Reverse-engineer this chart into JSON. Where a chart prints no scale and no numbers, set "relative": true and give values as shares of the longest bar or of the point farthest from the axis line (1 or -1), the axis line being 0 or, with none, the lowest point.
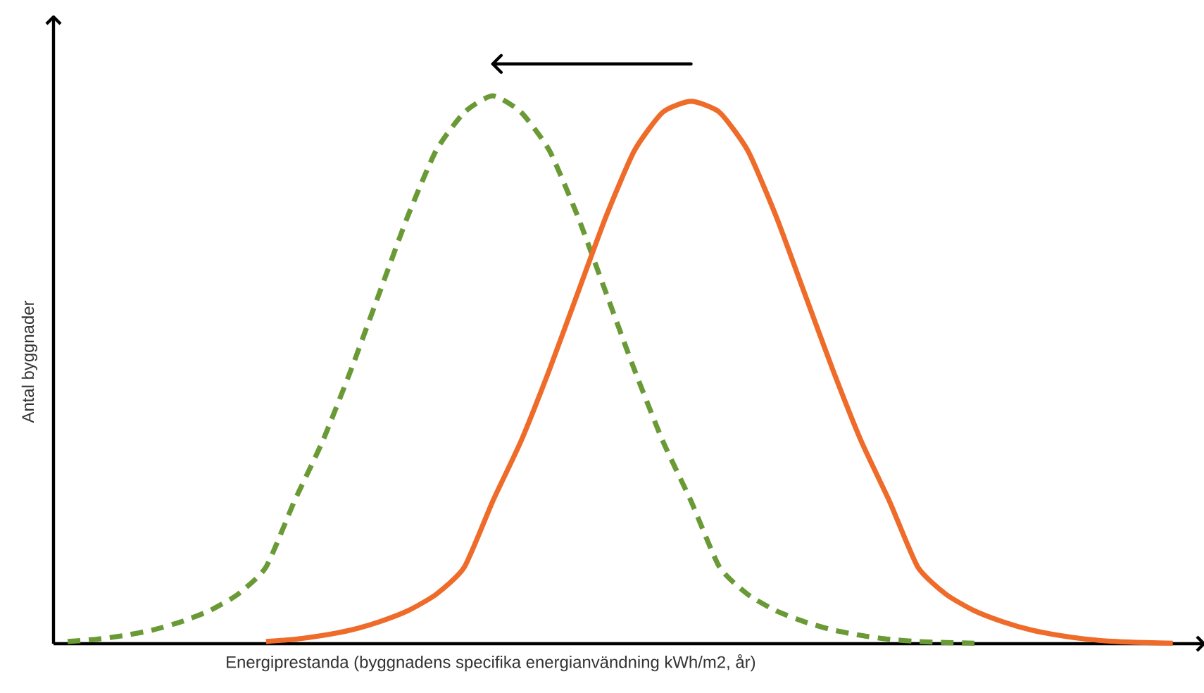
{
  "chart_data": {
    "type": "line",
    "relative": true,
    "xlabel": "Energiprestanda (byggnadens specifika energianvändning kWh/m2, år)",
    "ylabel": "Antal byggnader",
    "categories": [
      null,
      null,
      null,
      null,
      null,
      null,
      null,
      null,
      null,
      null,
      null,
      null,
      null,
      null,
      null,
      null,
      null,
      null,
      null,
      null,
      null,
      null,
      null,
      null,
      null,
      null,
      null,
      null,
      null,
      null,
      null,
      null,
      null,
      null,
      null,
      null,
      null,
      null,
      null,
      null
    ],
    "series": [
      {
        "color": "#6a9a35",
        "line_style": "dashed",
        "values": [
          0.004,
          0.008,
          0.015,
          0.025,
          0.04,
          0.06,
          0.09,
          0.14,
          0.26,
          0.37,
          0.5,
          0.64,
          0.78,
          0.9,
          0.97,
          1,
          0.97,
          0.9,
          0.78,
          0.64,
          0.5,
          0.37,
          0.26,
          0.14,
          0.09,
          0.06,
          0.04,
          0.025,
          0.015,
          0.008,
          0.004,
          0.002,
          0.001,
          null,
          null,
          null,
          null,
          null,
          null,
          null
        ]
      },
      {
        "color": "#ef6b2a",
        "line_style": "solid",
        "values": [
          null,
          null,
          null,
          null,
          null,
          null,
          null,
          0.004,
          0.008,
          0.015,
          0.025,
          0.04,
          0.06,
          0.09,
          0.14,
          0.26,
          0.37,
          0.5,
          0.64,
          0.78,
          0.9,
          0.97,
          0.99,
          0.97,
          0.9,
          0.78,
          0.64,
          0.5,
          0.37,
          0.26,
          0.14,
          0.09,
          0.06,
          0.04,
          0.025,
          0.015,
          0.008,
          0.004,
          0.002,
          0.001
        ]
      }
    ]
  }
}
